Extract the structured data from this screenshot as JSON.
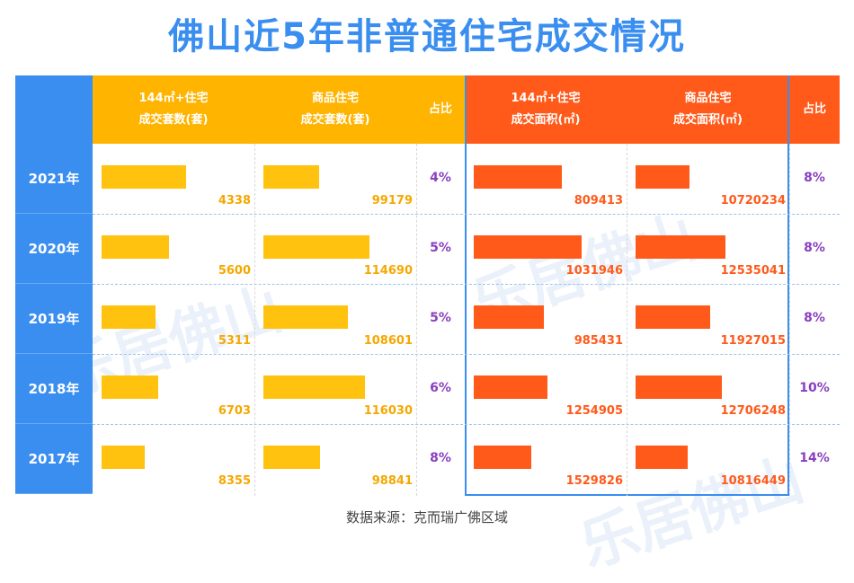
{
  "title": "佛山近5年非普通住宅成交情况",
  "watermark": "乐居佛山",
  "headers": {
    "nonstd_units": "144㎡+住宅\n成交套数(套)",
    "all_units": "商品住宅\n成交套数(套)",
    "ratio_units": "占比",
    "nonstd_area": "144㎡+住宅\n成交面积(㎡)",
    "all_area": "商品住宅\n成交面积(㎡)",
    "ratio_area": "占比"
  },
  "colors": {
    "yellow": "#ffc20e",
    "orange": "#ff5a1a",
    "blue": "#3a8ef0",
    "purple": "#8a3fc0"
  },
  "source": "数据来源：克而瑞广佛区域",
  "chart_data": {
    "type": "table",
    "title": "佛山近5年非普通住宅成交情况",
    "categories": [
      "2021年",
      "2020年",
      "2019年",
      "2018年",
      "2017年"
    ],
    "series": [
      {
        "name": "144㎡+住宅成交套数(套)",
        "values": [
          4338,
          5600,
          5311,
          6703,
          8355
        ]
      },
      {
        "name": "商品住宅成交套数(套)",
        "values": [
          99179,
          114690,
          108601,
          116030,
          98841
        ]
      },
      {
        "name": "占比",
        "values": [
          "4%",
          "5%",
          "5%",
          "6%",
          "8%"
        ]
      },
      {
        "name": "144㎡+住宅成交面积(㎡)",
        "values": [
          809413,
          1031946,
          985431,
          1254905,
          1529826
        ]
      },
      {
        "name": "商品住宅成交面积(㎡)",
        "values": [
          10720234,
          12535041,
          11927015,
          12706248,
          10816449
        ]
      },
      {
        "name": "占比",
        "values": [
          "8%",
          "8%",
          "8%",
          "10%",
          "14%"
        ]
      }
    ]
  }
}
